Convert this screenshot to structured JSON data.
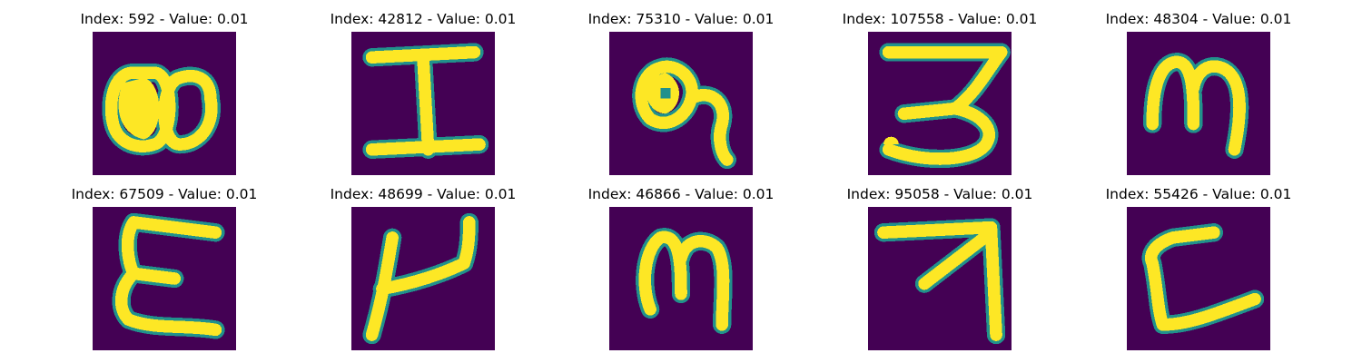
{
  "colors": {
    "background": "#440154",
    "mid": "#21918c",
    "foreground": "#fde725"
  },
  "panels": [
    {
      "title": "Index: 592 - Value: 0.01",
      "glyph": "two-loops-digit"
    },
    {
      "title": "Index: 42812 - Value: 0.01",
      "glyph": "capital-i"
    },
    {
      "title": "Index: 75310 - Value: 0.01",
      "glyph": "looped-curl"
    },
    {
      "title": "Index: 107558 - Value: 0.01",
      "glyph": "three-shape"
    },
    {
      "title": "Index: 48304 - Value: 0.01",
      "glyph": "m-shape"
    },
    {
      "title": "Index: 67509 - Value: 0.01",
      "glyph": "e-shape"
    },
    {
      "title": "Index: 48699 - Value: 0.01",
      "glyph": "u-hook"
    },
    {
      "title": "Index: 46866 - Value: 0.01",
      "glyph": "m-shape-2"
    },
    {
      "title": "Index: 95058 - Value: 0.01",
      "glyph": "arrow-up-right"
    },
    {
      "title": "Index: 55426 - Value: 0.01",
      "glyph": "l-shape"
    }
  ]
}
